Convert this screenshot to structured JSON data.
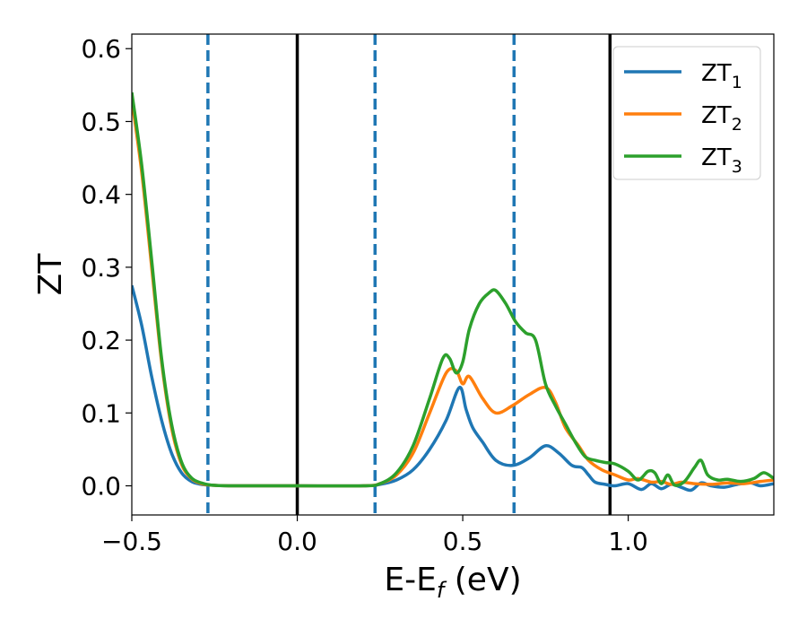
{
  "chart_data": {
    "type": "line",
    "title": "",
    "xlabel": "E-E",
    "xlabel_sub": "f",
    "xlabel_unit": " (eV)",
    "ylabel": "ZT",
    "xlim": [
      -0.5,
      1.44
    ],
    "ylim": [
      -0.04,
      0.62
    ],
    "xticks": [
      -0.5,
      0.0,
      0.5,
      1.0
    ],
    "xtick_labels": [
      "−0.5",
      "0.0",
      "0.5",
      "1.0"
    ],
    "yticks": [
      0.0,
      0.1,
      0.2,
      0.3,
      0.4,
      0.5,
      0.6
    ],
    "ytick_labels": [
      "0.0",
      "0.1",
      "0.2",
      "0.3",
      "0.4",
      "0.5",
      "0.6"
    ],
    "grid": false,
    "legend_position": "top-right",
    "vertical_lines": [
      {
        "x": -0.27,
        "style": "dashed",
        "color": "#1f77b4"
      },
      {
        "x": 0.0,
        "style": "solid",
        "color": "#000000"
      },
      {
        "x": 0.235,
        "style": "dashed",
        "color": "#1f77b4"
      },
      {
        "x": 0.655,
        "style": "dashed",
        "color": "#1f77b4"
      },
      {
        "x": 0.945,
        "style": "solid",
        "color": "#000000"
      }
    ],
    "series": [
      {
        "name": "ZT",
        "name_sub": "1",
        "color": "#1f77b4",
        "x": [
          -0.5,
          -0.47,
          -0.44,
          -0.41,
          -0.38,
          -0.35,
          -0.32,
          -0.29,
          -0.26,
          -0.2,
          0.0,
          0.2,
          0.25,
          0.3,
          0.35,
          0.4,
          0.45,
          0.49,
          0.51,
          0.53,
          0.56,
          0.6,
          0.65,
          0.7,
          0.75,
          0.79,
          0.83,
          0.86,
          0.88,
          0.9,
          0.93,
          0.96,
          1.0,
          1.04,
          1.07,
          1.1,
          1.13,
          1.16,
          1.19,
          1.22,
          1.25,
          1.29,
          1.33,
          1.37,
          1.4,
          1.44
        ],
        "y": [
          0.275,
          0.22,
          0.15,
          0.09,
          0.045,
          0.018,
          0.006,
          0.002,
          0.001,
          0.0,
          0.0,
          0.0,
          0.002,
          0.008,
          0.022,
          0.05,
          0.09,
          0.135,
          0.105,
          0.08,
          0.06,
          0.035,
          0.028,
          0.038,
          0.055,
          0.045,
          0.028,
          0.025,
          0.015,
          0.005,
          0.002,
          0.0,
          0.003,
          -0.005,
          0.003,
          -0.004,
          0.002,
          -0.002,
          -0.006,
          0.004,
          0.0,
          -0.002,
          0.002,
          0.004,
          0.0,
          0.003
        ]
      },
      {
        "name": "ZT",
        "name_sub": "2",
        "color": "#ff7f0e",
        "x": [
          -0.5,
          -0.47,
          -0.44,
          -0.41,
          -0.38,
          -0.35,
          -0.32,
          -0.29,
          -0.26,
          -0.2,
          0.0,
          0.2,
          0.25,
          0.3,
          0.35,
          0.4,
          0.45,
          0.48,
          0.5,
          0.52,
          0.56,
          0.6,
          0.65,
          0.7,
          0.75,
          0.78,
          0.81,
          0.85,
          0.88,
          0.92,
          0.96,
          1.0,
          1.03,
          1.07,
          1.1,
          1.13,
          1.16,
          1.2,
          1.25,
          1.3,
          1.35,
          1.4,
          1.44
        ],
        "y": [
          0.53,
          0.43,
          0.3,
          0.17,
          0.08,
          0.03,
          0.01,
          0.003,
          0.001,
          0.0,
          0.0,
          0.0,
          0.003,
          0.015,
          0.045,
          0.1,
          0.155,
          0.158,
          0.14,
          0.15,
          0.12,
          0.1,
          0.11,
          0.125,
          0.135,
          0.115,
          0.08,
          0.055,
          0.035,
          0.022,
          0.015,
          0.008,
          0.01,
          0.005,
          0.006,
          0.002,
          0.005,
          0.003,
          0.002,
          0.004,
          0.003,
          0.006,
          0.008
        ]
      },
      {
        "name": "ZT",
        "name_sub": "3",
        "color": "#2ca02c",
        "x": [
          -0.5,
          -0.47,
          -0.44,
          -0.41,
          -0.38,
          -0.35,
          -0.32,
          -0.29,
          -0.26,
          -0.2,
          0.0,
          0.2,
          0.25,
          0.3,
          0.35,
          0.4,
          0.44,
          0.46,
          0.48,
          0.5,
          0.52,
          0.55,
          0.58,
          0.6,
          0.63,
          0.66,
          0.69,
          0.72,
          0.75,
          0.78,
          0.81,
          0.84,
          0.87,
          0.9,
          0.93,
          0.96,
          1.0,
          1.03,
          1.06,
          1.08,
          1.1,
          1.12,
          1.14,
          1.17,
          1.2,
          1.22,
          1.24,
          1.27,
          1.3,
          1.34,
          1.38,
          1.41,
          1.44
        ],
        "y": [
          0.54,
          0.44,
          0.31,
          0.175,
          0.085,
          0.033,
          0.011,
          0.004,
          0.001,
          0.0,
          0.0,
          0.0,
          0.003,
          0.018,
          0.055,
          0.12,
          0.175,
          0.175,
          0.155,
          0.17,
          0.215,
          0.25,
          0.265,
          0.268,
          0.25,
          0.225,
          0.21,
          0.2,
          0.14,
          0.11,
          0.085,
          0.06,
          0.04,
          0.035,
          0.032,
          0.03,
          0.02,
          0.008,
          0.02,
          0.018,
          0.003,
          0.015,
          0.001,
          0.006,
          0.025,
          0.035,
          0.015,
          0.008,
          0.009,
          0.006,
          0.01,
          0.018,
          0.01
        ]
      }
    ]
  }
}
